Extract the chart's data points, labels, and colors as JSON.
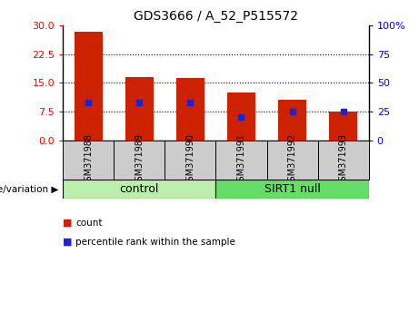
{
  "title": "GDS3666 / A_52_P515572",
  "samples": [
    "GSM371988",
    "GSM371989",
    "GSM371990",
    "GSM371991",
    "GSM371992",
    "GSM371993"
  ],
  "counts": [
    28.5,
    16.5,
    16.2,
    12.5,
    10.5,
    7.5
  ],
  "percentiles": [
    33,
    33,
    33,
    20,
    25,
    25
  ],
  "left_ylim": [
    0,
    30
  ],
  "right_ylim": [
    0,
    100
  ],
  "left_yticks": [
    0,
    7.5,
    15,
    22.5,
    30
  ],
  "right_yticks": [
    0,
    25,
    50,
    75,
    100
  ],
  "right_yticklabels": [
    "0",
    "25",
    "50",
    "75",
    "100%"
  ],
  "bar_color": "#cc2200",
  "marker_color": "#2222cc",
  "groups": [
    {
      "label": "control",
      "samples": [
        0,
        1,
        2
      ],
      "color": "#bbeeaa"
    },
    {
      "label": "SIRT1 null",
      "samples": [
        3,
        4,
        5
      ],
      "color": "#66dd66"
    }
  ],
  "group_label_prefix": "genotype/variation",
  "legend_count_label": "count",
  "legend_percentile_label": "percentile rank within the sample",
  "bar_width": 0.55,
  "figsize": [
    4.61,
    3.54
  ],
  "dpi": 100
}
